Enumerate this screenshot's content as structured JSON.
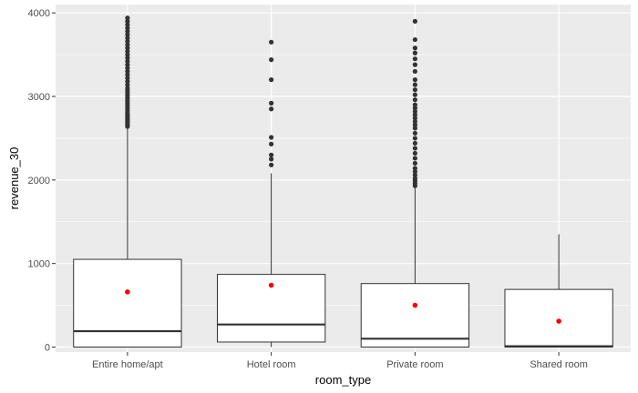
{
  "chart_data": {
    "type": "boxplot",
    "xlabel": "room_type",
    "ylabel": "revenue_30",
    "ylim": [
      -60,
      4100
    ],
    "y_ticks": [
      0,
      1000,
      2000,
      3000,
      4000
    ],
    "y_minor_ticks": [
      500,
      1500,
      2500,
      3500
    ],
    "grid": true,
    "colors": {
      "panel": "#ebebeb",
      "grid": "#ffffff",
      "box_fill": "#ffffff",
      "box_stroke": "#333333",
      "outlier": "#333333",
      "mean_point": "#ff0000"
    },
    "categories": [
      "Entire home/apt",
      "Hotel room",
      "Private room",
      "Shared room"
    ],
    "boxes": [
      {
        "category": "Entire home/apt",
        "min": 0,
        "q1": 0,
        "median": 190,
        "q3": 1050,
        "max": 2620,
        "mean": 660,
        "outliers": [
          2640,
          2660,
          2680,
          2700,
          2720,
          2740,
          2760,
          2780,
          2800,
          2830,
          2860,
          2890,
          2920,
          2950,
          2980,
          3010,
          3040,
          3070,
          3100,
          3140,
          3180,
          3220,
          3260,
          3300,
          3340,
          3380,
          3420,
          3460,
          3500,
          3540,
          3580,
          3620,
          3660,
          3700,
          3740,
          3780,
          3820,
          3860,
          3900,
          3940
        ]
      },
      {
        "category": "Hotel room",
        "min": 0,
        "q1": 60,
        "median": 270,
        "q3": 870,
        "max": 2080,
        "mean": 740,
        "outliers": [
          2180,
          2250,
          2300,
          2430,
          2510,
          2850,
          2920,
          3200,
          3440,
          3650
        ]
      },
      {
        "category": "Private room",
        "min": 0,
        "q1": 0,
        "median": 100,
        "q3": 760,
        "max": 1900,
        "mean": 500,
        "outliers": [
          1930,
          1960,
          1990,
          2020,
          2060,
          2100,
          2140,
          2200,
          2260,
          2320,
          2380,
          2440,
          2500,
          2560,
          2620,
          2660,
          2700,
          2740,
          2780,
          2820,
          2860,
          2900,
          2960,
          3020,
          3080,
          3140,
          3200,
          3300,
          3380,
          3450,
          3520,
          3580,
          3680,
          3900
        ]
      },
      {
        "category": "Shared room",
        "min": 0,
        "q1": 0,
        "median": 10,
        "q3": 690,
        "max": 1350,
        "mean": 310,
        "outliers": []
      }
    ]
  }
}
